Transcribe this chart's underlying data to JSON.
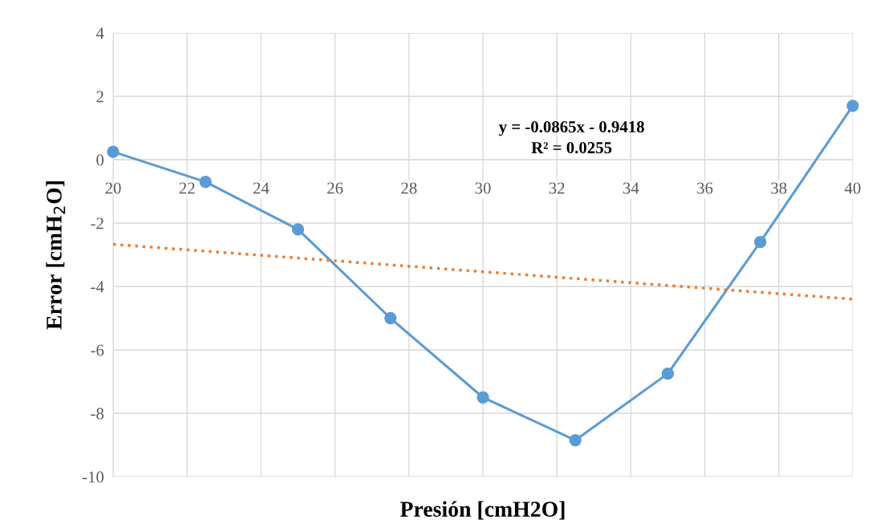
{
  "chart_data": {
    "type": "line",
    "xlabel": "Presión [cmH2O]",
    "ylabel": "Error [cmH$_{2}$O]",
    "x": [
      20,
      22.5,
      25,
      27.5,
      30,
      32.5,
      35,
      37.5,
      40
    ],
    "series": [
      {
        "color": "#5b9bd5",
        "values": [
          0.25,
          -0.7,
          -2.2,
          -5.0,
          -7.5,
          -8.85,
          -6.75,
          -2.6,
          1.7
        ],
        "marker": "circle",
        "line_style": "solid"
      },
      {
        "type": "line",
        "color": "#ed7d31",
        "x": [
          20,
          40
        ],
        "values": [
          -2.67,
          -4.4
        ],
        "marker": "none",
        "line_style": "dotted"
      }
    ],
    "xlim": [
      20,
      40
    ],
    "ylim": [
      -10,
      4
    ],
    "xticks": [
      20,
      22,
      24,
      26,
      28,
      30,
      32,
      34,
      36,
      38,
      40
    ],
    "yticks": [
      -10,
      -8,
      -6,
      -4,
      -2,
      0,
      2,
      4
    ],
    "grid": true,
    "legend": false,
    "annotations": [
      "y = -0.0865x - 0.9418",
      "R² = 0.0255"
    ]
  }
}
